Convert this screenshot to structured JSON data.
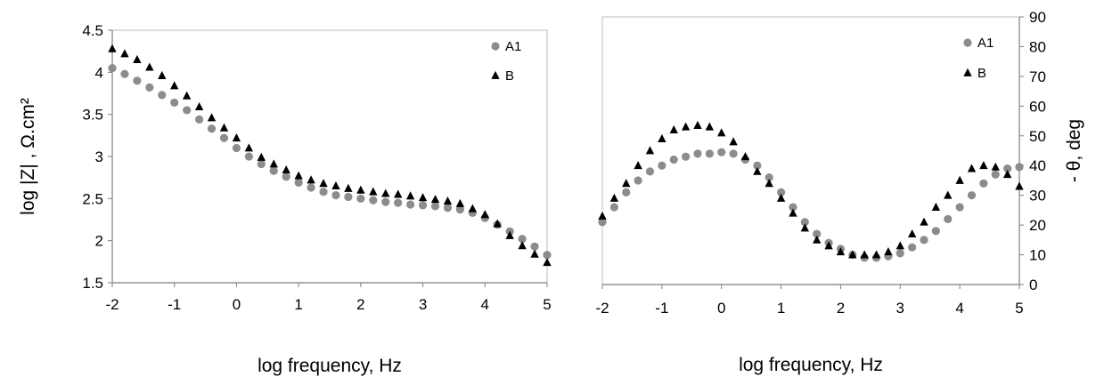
{
  "chart_data": [
    {
      "type": "scatter",
      "title": "",
      "xlabel": "log frequency, Hz",
      "ylabel": "log |Z| , Ω.cm²",
      "xlim": [
        -2,
        5
      ],
      "ylim": [
        1.5,
        4.5
      ],
      "xticks": [
        "-2",
        "-1",
        "0",
        "1",
        "2",
        "3",
        "4",
        "5"
      ],
      "yticks": [
        "1.5",
        "2",
        "2.5",
        "3",
        "3.5",
        "4",
        "4.5"
      ],
      "y_axis_side": "left",
      "grid": false,
      "legend": "top-right",
      "series": [
        {
          "name": "A1",
          "marker": "circle",
          "color": "#8c8c8c",
          "x": [
            -2.0,
            -1.8,
            -1.6,
            -1.4,
            -1.2,
            -1.0,
            -0.8,
            -0.6,
            -0.4,
            -0.2,
            0.0,
            0.2,
            0.4,
            0.6,
            0.8,
            1.0,
            1.2,
            1.4,
            1.6,
            1.8,
            2.0,
            2.2,
            2.4,
            2.6,
            2.8,
            3.0,
            3.2,
            3.4,
            3.6,
            3.8,
            4.0,
            4.2,
            4.4,
            4.6,
            4.8,
            5.0
          ],
          "y": [
            4.05,
            3.98,
            3.9,
            3.82,
            3.73,
            3.64,
            3.55,
            3.44,
            3.33,
            3.22,
            3.1,
            3.0,
            2.91,
            2.83,
            2.76,
            2.69,
            2.63,
            2.58,
            2.54,
            2.52,
            2.5,
            2.48,
            2.46,
            2.45,
            2.43,
            2.42,
            2.41,
            2.39,
            2.37,
            2.33,
            2.27,
            2.19,
            2.11,
            2.02,
            1.93,
            1.83
          ]
        },
        {
          "name": "B",
          "marker": "triangle",
          "color": "#000000",
          "x": [
            -2.0,
            -1.8,
            -1.6,
            -1.4,
            -1.2,
            -1.0,
            -0.8,
            -0.6,
            -0.4,
            -0.2,
            0.0,
            0.2,
            0.4,
            0.6,
            0.8,
            1.0,
            1.2,
            1.4,
            1.6,
            1.8,
            2.0,
            2.2,
            2.4,
            2.6,
            2.8,
            3.0,
            3.2,
            3.4,
            3.6,
            3.8,
            4.0,
            4.2,
            4.4,
            4.6,
            4.8,
            5.0
          ],
          "y": [
            4.28,
            4.22,
            4.15,
            4.06,
            3.96,
            3.84,
            3.72,
            3.59,
            3.46,
            3.34,
            3.22,
            3.1,
            2.99,
            2.91,
            2.84,
            2.77,
            2.72,
            2.68,
            2.65,
            2.62,
            2.6,
            2.58,
            2.56,
            2.55,
            2.53,
            2.51,
            2.49,
            2.47,
            2.44,
            2.38,
            2.31,
            2.2,
            2.06,
            1.94,
            1.84,
            1.74
          ]
        }
      ]
    },
    {
      "type": "scatter",
      "title": "",
      "xlabel": "log frequency, Hz",
      "ylabel": "- θ, deg",
      "xlim": [
        -2,
        5
      ],
      "ylim": [
        0,
        90
      ],
      "xticks": [
        "-2",
        "-1",
        "0",
        "1",
        "2",
        "3",
        "4",
        "5"
      ],
      "yticks": [
        "0",
        "10",
        "20",
        "30",
        "40",
        "50",
        "60",
        "70",
        "80",
        "90"
      ],
      "y_axis_side": "right",
      "grid": false,
      "legend": "top-right",
      "series": [
        {
          "name": "A1",
          "marker": "circle",
          "color": "#8c8c8c",
          "x": [
            -2.0,
            -1.8,
            -1.6,
            -1.4,
            -1.2,
            -1.0,
            -0.8,
            -0.6,
            -0.4,
            -0.2,
            0.0,
            0.2,
            0.4,
            0.6,
            0.8,
            1.0,
            1.2,
            1.4,
            1.6,
            1.8,
            2.0,
            2.2,
            2.4,
            2.6,
            2.8,
            3.0,
            3.2,
            3.4,
            3.6,
            3.8,
            4.0,
            4.2,
            4.4,
            4.6,
            4.8,
            5.0
          ],
          "y": [
            21,
            26,
            31,
            35,
            38,
            40,
            42,
            43,
            44,
            44,
            44.5,
            44,
            42,
            40,
            36,
            31,
            26,
            21,
            17,
            14,
            12,
            10,
            9,
            9,
            9.5,
            10.5,
            12.5,
            15,
            18,
            22,
            26,
            30,
            34,
            37,
            39,
            39.5
          ]
        },
        {
          "name": "B",
          "marker": "triangle",
          "color": "#000000",
          "x": [
            -2.0,
            -1.8,
            -1.6,
            -1.4,
            -1.2,
            -1.0,
            -0.8,
            -0.6,
            -0.4,
            -0.2,
            0.0,
            0.2,
            0.4,
            0.6,
            0.8,
            1.0,
            1.2,
            1.4,
            1.6,
            1.8,
            2.0,
            2.2,
            2.4,
            2.6,
            2.8,
            3.0,
            3.2,
            3.4,
            3.6,
            3.8,
            4.0,
            4.2,
            4.4,
            4.6,
            4.8,
            5.0
          ],
          "y": [
            23,
            29,
            34,
            40,
            45,
            49,
            52,
            53,
            53.5,
            53,
            51,
            48,
            43,
            38,
            34,
            29,
            24,
            19,
            15,
            13,
            11,
            10,
            10,
            10,
            11,
            13,
            17,
            21,
            26,
            30,
            35,
            39,
            40,
            39.5,
            37,
            33
          ]
        }
      ]
    }
  ]
}
